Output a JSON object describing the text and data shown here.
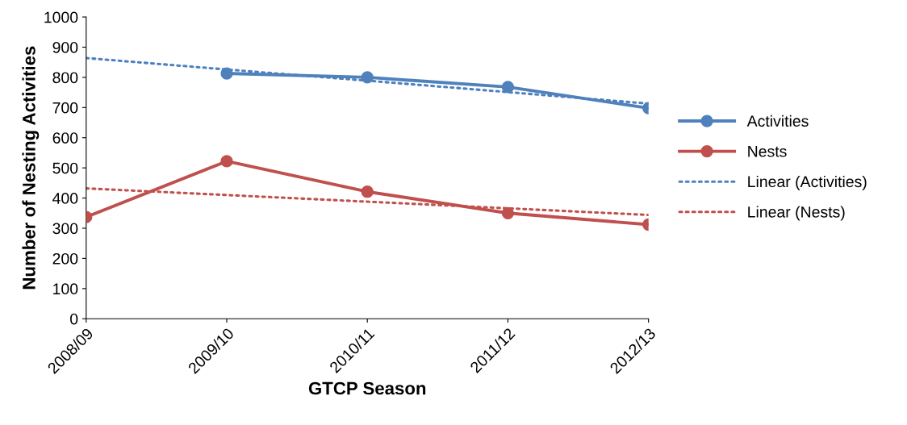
{
  "chart_data": {
    "type": "line",
    "xlabel": "GTCP Season",
    "ylabel": "Number of Nesting Activities",
    "categories": [
      "2008/09",
      "2009/10",
      "2010/11",
      "2011/12",
      "2012/13"
    ],
    "series": [
      {
        "name": "Activities",
        "color": "#4f81bd",
        "values": [
          null,
          813,
          800,
          768,
          698
        ],
        "marker": "circle",
        "line_style": "solid"
      },
      {
        "name": "Nests",
        "color": "#c0504d",
        "values": [
          337,
          522,
          421,
          350,
          312
        ],
        "marker": "circle",
        "line_style": "solid"
      },
      {
        "name": "Linear (Activities)",
        "color": "#4f81bd",
        "values": [
          864,
          826,
          789,
          751,
          713
        ],
        "marker": "none",
        "line_style": "dotted"
      },
      {
        "name": "Linear (Nests)",
        "color": "#c0504d",
        "values": [
          432,
          410,
          388,
          366,
          344
        ],
        "marker": "none",
        "line_style": "dotted"
      }
    ],
    "ylim": [
      0,
      1000
    ],
    "yticks": [
      0,
      100,
      200,
      300,
      400,
      500,
      600,
      700,
      800,
      900,
      1000
    ],
    "grid": false,
    "legend": "right"
  }
}
